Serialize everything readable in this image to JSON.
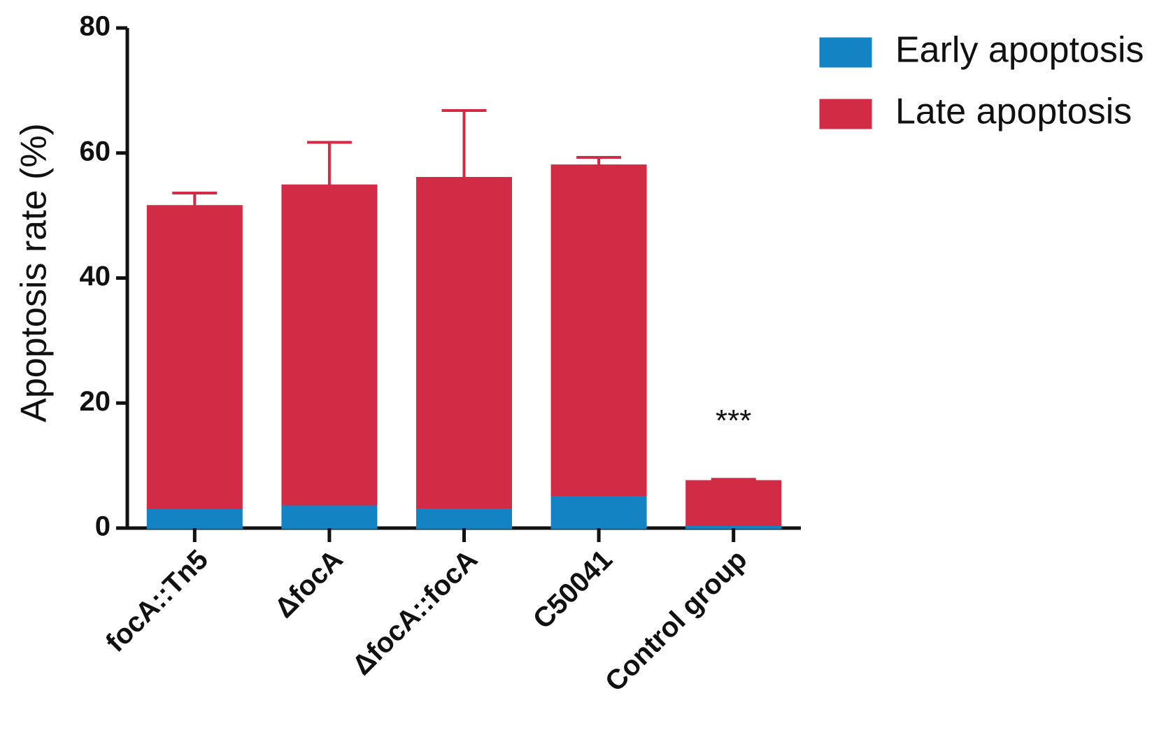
{
  "chart_data": {
    "type": "stacked_bar",
    "y_label": "Apoptosis rate (%)",
    "categories": [
      "focA::Tn5",
      "ΔfocA",
      "ΔfocA::focA",
      "C50041",
      "Control group"
    ],
    "series": [
      {
        "name": "Early apoptosis",
        "color": "#1483c4",
        "values": [
          3.2,
          3.8,
          3.3,
          5.3,
          0.5
        ],
        "errors": [
          0.6,
          0.6,
          0.8,
          0.9,
          0.2
        ]
      },
      {
        "name": "Late apoptosis",
        "color": "#d22b45",
        "values": [
          48.3,
          51.0,
          52.7,
          52.7,
          7.0
        ],
        "errors": [
          2.1,
          6.9,
          10.8,
          1.3,
          0.3
        ]
      }
    ],
    "ylim": [
      0,
      80
    ],
    "yticks": [
      0,
      20,
      40,
      60,
      80
    ],
    "annotation": "***",
    "legend": "top-right"
  }
}
